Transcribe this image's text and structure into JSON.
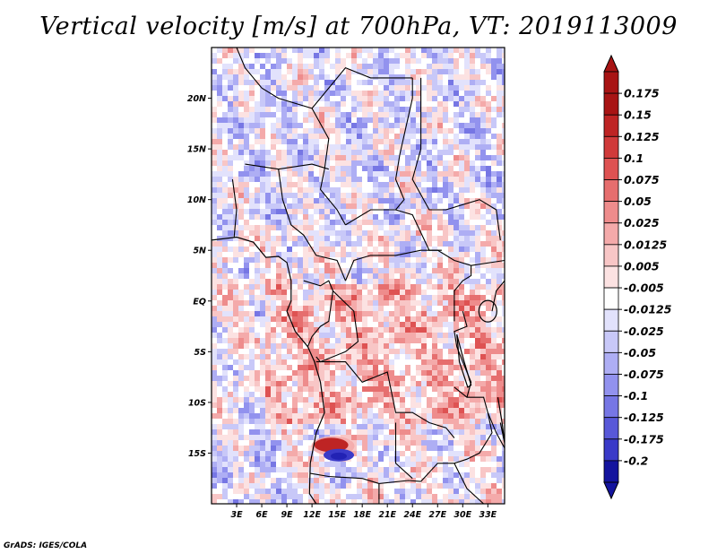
{
  "title": "Vertical velocity [m/s] at 700hPa, VT: 2019113009",
  "footer": "GrADS: IGES/COLA",
  "map": {
    "lon_range": [
      0,
      35
    ],
    "lat_range": [
      -20,
      25
    ],
    "lat_ticks": [
      {
        "value": 20,
        "label": "20N"
      },
      {
        "value": 15,
        "label": "15N"
      },
      {
        "value": 10,
        "label": "10N"
      },
      {
        "value": 5,
        "label": "5N"
      },
      {
        "value": 0,
        "label": "EQ"
      },
      {
        "value": -5,
        "label": "5S"
      },
      {
        "value": -10,
        "label": "10S"
      },
      {
        "value": -15,
        "label": "15S"
      }
    ],
    "lon_ticks": [
      {
        "value": 3,
        "label": "3E"
      },
      {
        "value": 6,
        "label": "6E"
      },
      {
        "value": 9,
        "label": "9E"
      },
      {
        "value": 12,
        "label": "12E"
      },
      {
        "value": 15,
        "label": "15E"
      },
      {
        "value": 18,
        "label": "18E"
      },
      {
        "value": 21,
        "label": "21E"
      },
      {
        "value": 24,
        "label": "24E"
      },
      {
        "value": 27,
        "label": "27E"
      },
      {
        "value": 30,
        "label": "30E"
      },
      {
        "value": 33,
        "label": "33E"
      }
    ]
  },
  "colorbar": {
    "levels": [
      {
        "label": "0.175",
        "color": "#a81414"
      },
      {
        "label": "0.15",
        "color": "#be2424"
      },
      {
        "label": "0.125",
        "color": "#d03a3a"
      },
      {
        "label": "0.1",
        "color": "#de5252"
      },
      {
        "label": "0.075",
        "color": "#e66e6e"
      },
      {
        "label": "0.05",
        "color": "#ee8c8c"
      },
      {
        "label": "0.025",
        "color": "#f4aaaa"
      },
      {
        "label": "0.0125",
        "color": "#f8c6c6"
      },
      {
        "label": "0.005",
        "color": "#fce2e2"
      },
      {
        "label": "-0.005",
        "color": "#ffffff"
      },
      {
        "label": "-0.0125",
        "color": "#e2e2fc"
      },
      {
        "label": "-0.025",
        "color": "#c8c8f8"
      },
      {
        "label": "-0.05",
        "color": "#aeaef4"
      },
      {
        "label": "-0.075",
        "color": "#9292ee"
      },
      {
        "label": "-0.1",
        "color": "#7676e4"
      },
      {
        "label": "-0.125",
        "color": "#5858d8"
      },
      {
        "label": "-0.175",
        "color": "#3a3ac8"
      },
      {
        "label": "-0.2",
        "color": "#2222b4"
      }
    ],
    "top_color": "#a81414",
    "bottom_color": "#14149e"
  }
}
